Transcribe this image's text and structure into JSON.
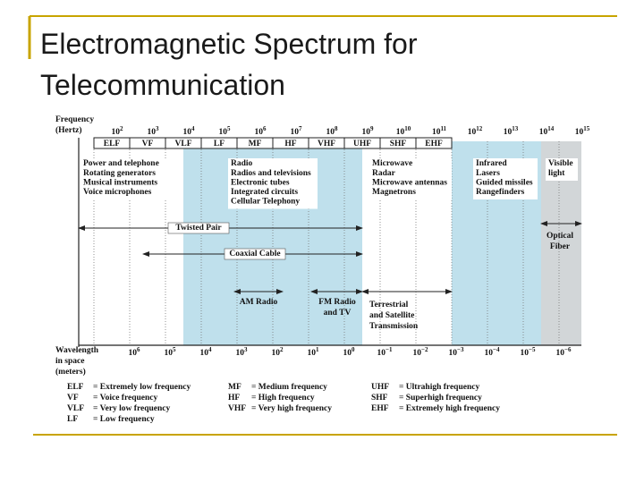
{
  "header": {
    "title": "Electromagnetic Spectrum for Telecommunication"
  },
  "diagram": {
    "frequency_label": [
      "Frequency",
      "(Hertz)"
    ],
    "frequency_ticks": [
      {
        "base": "10",
        "exp": "2"
      },
      {
        "base": "10",
        "exp": "3"
      },
      {
        "base": "10",
        "exp": "4"
      },
      {
        "base": "10",
        "exp": "5"
      },
      {
        "base": "10",
        "exp": "6"
      },
      {
        "base": "10",
        "exp": "7"
      },
      {
        "base": "10",
        "exp": "8"
      },
      {
        "base": "10",
        "exp": "9"
      },
      {
        "base": "10",
        "exp": "10"
      },
      {
        "base": "10",
        "exp": "11"
      },
      {
        "base": "10",
        "exp": "12"
      },
      {
        "base": "10",
        "exp": "13"
      },
      {
        "base": "10",
        "exp": "14"
      },
      {
        "base": "10",
        "exp": "15"
      }
    ],
    "bands": [
      "ELF",
      "VF",
      "VLF",
      "LF",
      "MF",
      "HF",
      "VHF",
      "UHF",
      "SHF",
      "EHF"
    ],
    "applications": [
      {
        "title_lines": [
          "Power and telephone"
        ],
        "items": [
          "Rotating generators",
          "Musical instruments",
          "Voice microphones"
        ]
      },
      {
        "title_lines": [
          "Radio"
        ],
        "items": [
          "Radios and televisions",
          "Electronic tubes",
          "Integrated circuits",
          "Cellular Telephony"
        ]
      },
      {
        "title_lines": [
          "Microwave"
        ],
        "items": [
          "Radar",
          "Microwave antennas",
          "Magnetrons"
        ]
      },
      {
        "title_lines": [
          "Infrared"
        ],
        "items": [
          "Lasers",
          "Guided missiles",
          "Rangefinders"
        ]
      },
      {
        "title_lines": [
          "Visible",
          "light"
        ],
        "items": []
      }
    ],
    "media": [
      {
        "lines": [
          "Twisted Pair"
        ]
      },
      {
        "lines": [
          "Coaxial Cable"
        ]
      },
      {
        "lines": [
          "AM Radio"
        ]
      },
      {
        "lines": [
          "FM Radio",
          "and TV"
        ]
      },
      {
        "lines": [
          "Terrestrial",
          "and Satellite",
          "Transmission"
        ]
      },
      {
        "lines": [
          "Optical",
          "Fiber"
        ]
      }
    ],
    "wavelength_label": [
      "Wavelength",
      "in space",
      "(meters)"
    ],
    "wavelength_ticks": [
      {
        "base": "10",
        "exp": "6"
      },
      {
        "base": "10",
        "exp": "5"
      },
      {
        "base": "10",
        "exp": "4"
      },
      {
        "base": "10",
        "exp": "3"
      },
      {
        "base": "10",
        "exp": "2"
      },
      {
        "base": "10",
        "exp": "1"
      },
      {
        "base": "10",
        "exp": "0"
      },
      {
        "base": "10",
        "exp": "−1"
      },
      {
        "base": "10",
        "exp": "−2"
      },
      {
        "base": "10",
        "exp": "−3"
      },
      {
        "base": "10",
        "exp": "−4"
      },
      {
        "base": "10",
        "exp": "−5"
      },
      {
        "base": "10",
        "exp": "−6"
      }
    ],
    "legend": [
      [
        {
          "abbr": "ELF",
          "definition": "= Extremely low frequency"
        },
        {
          "abbr": "VF",
          "definition": "= Voice frequency"
        },
        {
          "abbr": "VLF",
          "definition": "= Very low frequency"
        },
        {
          "abbr": "LF",
          "definition": "= Low frequency"
        }
      ],
      [
        {
          "abbr": "MF",
          "definition": "= Medium frequency"
        },
        {
          "abbr": "HF",
          "definition": "= High frequency"
        },
        {
          "abbr": "VHF",
          "definition": "= Very high frequency"
        }
      ],
      [
        {
          "abbr": "UHF",
          "definition": "= Ultrahigh frequency"
        },
        {
          "abbr": "SHF",
          "definition": "= Superhigh frequency"
        },
        {
          "abbr": "EHF",
          "definition": "= Extremely high frequency"
        }
      ]
    ]
  }
}
